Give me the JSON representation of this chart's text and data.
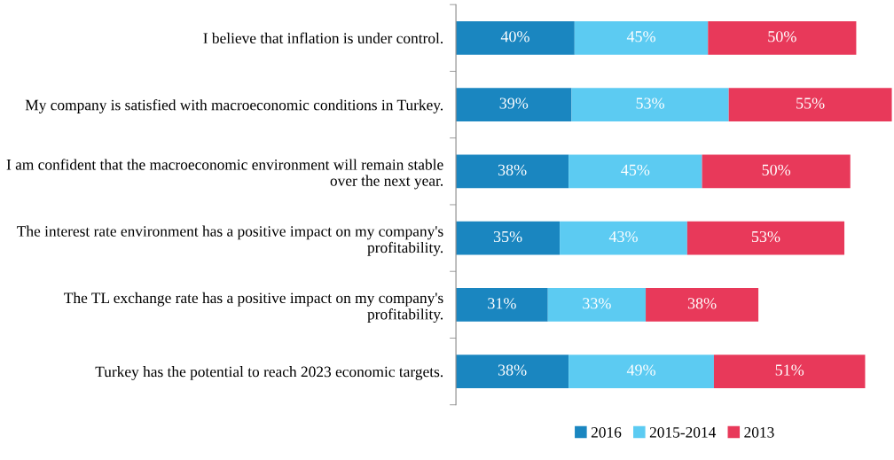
{
  "chart_data": {
    "type": "bar",
    "orientation": "horizontal",
    "stacked": true,
    "legend": "bottom",
    "grid": false,
    "categories": [
      "I believe that inflation is under control.",
      "My company is satisfied with macroeconomic conditions in Turkey.",
      "I am confident that the macroeconomic environment will remain stable over the next year.",
      "The interest rate environment has a positive impact on my company's profitability.",
      "The TL exchange rate has a positive impact on my company's profitability.",
      "Turkey has the potential to reach 2023 economic targets."
    ],
    "series": [
      {
        "name": "2016",
        "color": "#1a86c0",
        "values": [
          40,
          39,
          38,
          35,
          31,
          38
        ],
        "value_labels": [
          "40%",
          "39%",
          "38%",
          "35%",
          "31%",
          "38%"
        ]
      },
      {
        "name": "2015-2014",
        "color": "#5ccbf2",
        "values": [
          45,
          53,
          45,
          43,
          33,
          49
        ],
        "value_labels": [
          "45%",
          "53%",
          "45%",
          "43%",
          "33%",
          "49%"
        ]
      },
      {
        "name": "2013",
        "color": "#e8395a",
        "values": [
          50,
          55,
          50,
          53,
          38,
          51
        ],
        "value_labels": [
          "50%",
          "55%",
          "50%",
          "53%",
          "38%",
          "51%"
        ]
      }
    ]
  }
}
